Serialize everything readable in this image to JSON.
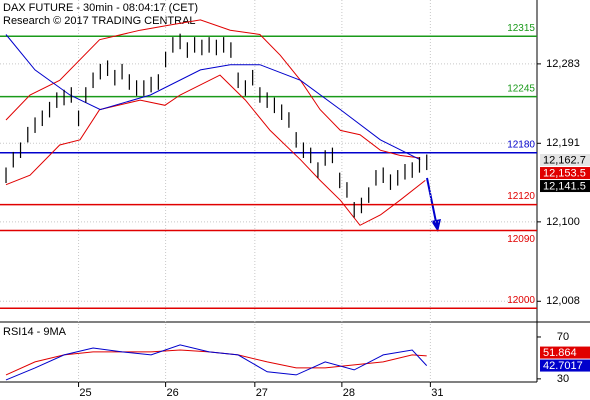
{
  "chart_data": [
    {
      "type": "range",
      "title": "DAX FUTURE - 30min - 08:04:17 (CET)",
      "subtitle": "Research © 2017 TRADING CENTRAL",
      "color": "#000000",
      "xlim": [
        -0.83,
        73.2
      ],
      "xticks": [
        {
          "value": 10,
          "label": "25"
        },
        {
          "value": 22,
          "label": "26"
        },
        {
          "value": 34.3,
          "label": "27"
        },
        {
          "value": 46.3,
          "label": "28"
        },
        {
          "value": 58.5,
          "label": "31"
        }
      ],
      "ylim": [
        11984,
        12357
      ],
      "yticks": [
        {
          "value": 12283,
          "label": "12,283"
        },
        {
          "value": 12191,
          "label": "12,191"
        },
        {
          "value": 12100,
          "label": "12,100"
        },
        {
          "value": 12008,
          "label": "12,008"
        }
      ],
      "grid": true,
      "high": [
        12163,
        12181,
        12192,
        12210,
        12221,
        12229,
        12239,
        12250,
        12253,
        12256,
        12229,
        12256,
        12273,
        12283,
        12287,
        12276,
        12283,
        12271,
        12264,
        12264,
        12268,
        12271,
        12297,
        12314,
        12318,
        12308,
        12314,
        12311,
        12314,
        12311,
        12314,
        12308,
        12273,
        12264,
        12276,
        12256,
        12250,
        12244,
        12236,
        12227,
        12204,
        12192,
        12186,
        12169,
        12183,
        12186,
        12157,
        12146,
        12123,
        12128,
        12140,
        12160,
        12163,
        12155,
        12160,
        12167,
        12169,
        12175,
        12178
      ],
      "low": [
        12145,
        12163,
        12174,
        12192,
        12203,
        12211,
        12221,
        12232,
        12235,
        12238,
        12211,
        12238,
        12255,
        12265,
        12269,
        12258,
        12265,
        12253,
        12246,
        12246,
        12250,
        12253,
        12279,
        12296,
        12300,
        12290,
        12296,
        12293,
        12296,
        12293,
        12296,
        12290,
        12255,
        12246,
        12258,
        12238,
        12232,
        12226,
        12218,
        12209,
        12186,
        12174,
        12168,
        12151,
        12165,
        12168,
        12139,
        12128,
        12105,
        12110,
        12122,
        12142,
        12145,
        12137,
        12142,
        12149,
        12151,
        12157,
        12160
      ],
      "overlays": [
        {
          "color": "#e00000",
          "x": [
            0,
            3.3,
            7.4,
            12.9,
            18.5,
            22.6,
            26.8,
            30.9,
            35,
            37.8,
            40.6,
            43.3,
            46.1,
            48.8,
            51.6,
            54.3,
            57.1
          ],
          "values": [
            12218,
            12247,
            12264,
            12311,
            12322,
            12328,
            12334,
            12322,
            12317,
            12293,
            12264,
            12230,
            12206,
            12201,
            12183,
            12177,
            12174
          ]
        },
        {
          "color": "#e00000",
          "x": [
            0,
            3.3,
            7.4,
            10.2,
            12.9,
            18.5,
            21.9,
            24,
            29.5,
            33,
            36.4,
            40.6,
            43.3,
            46.1,
            48.8,
            51.6,
            54.3,
            57.8
          ],
          "values": [
            12143,
            12154,
            12189,
            12195,
            12230,
            12241,
            12235,
            12247,
            12270,
            12241,
            12206,
            12172,
            12148,
            12125,
            12096,
            12108,
            12125,
            12148
          ]
        },
        {
          "color": "#0000cc",
          "x": [
            0,
            4,
            8.8,
            13,
            19.9,
            26.8,
            30.9,
            35,
            40.6,
            46.1,
            51.6,
            57.1
          ],
          "values": [
            12317,
            12276,
            12247,
            12230,
            12247,
            12276,
            12282,
            12282,
            12264,
            12230,
            12195,
            12172
          ]
        }
      ],
      "levels": [
        {
          "value": 12315,
          "color": "#1a9a1a"
        },
        {
          "value": 12245,
          "color": "#1a9a1a"
        },
        {
          "value": 12180,
          "color": "#0000cc"
        },
        {
          "value": 12120,
          "color": "#e00000"
        },
        {
          "value": 12090,
          "color": "#e00000"
        },
        {
          "value": 12000,
          "color": "#e00000"
        }
      ],
      "markers": [
        {
          "value": 12162.7,
          "label": "12,162.7",
          "color": "#e4e4e4",
          "text_color": "#000000"
        },
        {
          "value": 12153.5,
          "label": "12,153.5",
          "color": "#e00000",
          "text_color": "#ffffff"
        },
        {
          "value": 12141.5,
          "label": "12,141.5",
          "color": "#000000",
          "text_color": "#ffffff"
        }
      ]
    },
    {
      "type": "line",
      "title": "RSI14 - 9MA",
      "xlim": [
        -0.83,
        73.2
      ],
      "ylim": [
        27,
        84.3
      ],
      "yticks": [
        70,
        30
      ],
      "series": [
        {
          "color": "#e00000",
          "x": [
            0,
            4,
            8,
            12,
            16,
            20,
            24,
            28,
            32,
            36,
            40,
            44,
            48,
            52,
            56,
            58
          ],
          "values": [
            33.8,
            46.2,
            52.9,
            55.7,
            55.7,
            55.7,
            57.6,
            55.7,
            52.9,
            46.2,
            40.5,
            40.5,
            43.3,
            46.2,
            52.9,
            51.9
          ]
        },
        {
          "color": "#0000cc",
          "x": [
            0,
            4,
            8,
            12,
            16,
            20,
            24,
            28,
            32,
            36,
            40,
            44,
            48,
            52,
            56,
            58
          ],
          "values": [
            29,
            40.5,
            52.9,
            59.5,
            55.7,
            52.9,
            62.4,
            55.7,
            52.9,
            36.7,
            33.8,
            46.2,
            38.6,
            52.9,
            57.6,
            42.7
          ]
        }
      ],
      "markers": [
        {
          "value": 51.864,
          "label": "51.864",
          "color": "#e00000",
          "text_color": "#ffffff"
        },
        {
          "value": 42.7017,
          "label": "42.7017",
          "color": "#0000cc",
          "text_color": "#ffffff"
        }
      ]
    }
  ]
}
